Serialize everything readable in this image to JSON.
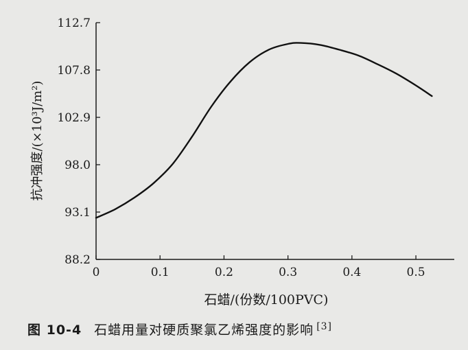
{
  "chart_data": {
    "type": "line",
    "xlabel": "石蜡/(份数/100PVC)",
    "ylabel": "抗冲强度/(×10³J/m²)",
    "x_ticks": [
      "0",
      "0.1",
      "0.2",
      "0.3",
      "0.4",
      "0.5"
    ],
    "y_ticks": [
      "88.2",
      "93.1",
      "98.0",
      "102.9",
      "107.8",
      "112.7"
    ],
    "xlim": [
      0,
      0.56
    ],
    "ylim": [
      88.2,
      112.7
    ],
    "grid": false,
    "series": [
      {
        "x": [
          0,
          0.03,
          0.06,
          0.09,
          0.12,
          0.15,
          0.18,
          0.21,
          0.24,
          0.27,
          0.3,
          0.32,
          0.35,
          0.38,
          0.41,
          0.44,
          0.47,
          0.5,
          0.525
        ],
        "y": [
          92.5,
          93.4,
          94.6,
          96.1,
          98.1,
          100.9,
          104.0,
          106.6,
          108.6,
          109.9,
          110.5,
          110.6,
          110.4,
          109.9,
          109.3,
          108.4,
          107.4,
          106.2,
          105.1
        ]
      }
    ]
  },
  "caption": {
    "figure_number": "图 10-4",
    "text": "石蜡用量对硬质聚氯乙烯强度的影响",
    "reference": "[3]"
  }
}
